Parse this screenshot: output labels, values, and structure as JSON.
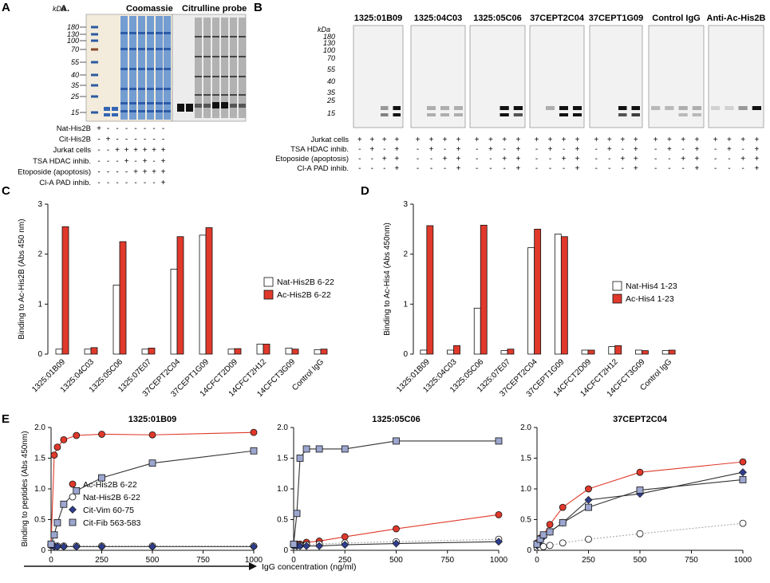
{
  "colors": {
    "red": "#e0392b",
    "lav": "#9ca6cf",
    "navy": "#2f3d8a",
    "blot_bg": "#f2f2f2"
  },
  "panelA": {
    "letter": "A",
    "sublabel": "A.",
    "kda": "kDa",
    "gel1_title": "Coomassie",
    "gel2_title": "Citrulline probe",
    "markers": [
      "180",
      "130",
      "100",
      "70",
      "55",
      "40",
      "35",
      "25",
      "15"
    ],
    "conditions": [
      {
        "label": "Nat-His2B",
        "signs": [
          "+",
          "-",
          "-",
          "-",
          "-",
          "-",
          "-",
          "-"
        ]
      },
      {
        "label": "Cit-His2B",
        "signs": [
          "-",
          "+",
          "-",
          "-",
          "-",
          "-",
          "-",
          "-"
        ]
      },
      {
        "label": "Jurkat cells",
        "signs": [
          "-",
          "-",
          "+",
          "+",
          "+",
          "+",
          "+",
          "+"
        ]
      },
      {
        "label": "TSA HDAC inhib.",
        "signs": [
          "-",
          "-",
          "-",
          "+",
          "-",
          "+",
          "-",
          "+"
        ]
      },
      {
        "label": "Etoposide (apoptosis)",
        "signs": [
          "-",
          "-",
          "-",
          "-",
          "+",
          "+",
          "+",
          "+"
        ]
      },
      {
        "label": "Cl-A PAD inhib.",
        "signs": [
          "-",
          "-",
          "-",
          "-",
          "-",
          "-",
          "-",
          "+"
        ]
      }
    ]
  },
  "panelB": {
    "letter": "B",
    "kda": "kDa",
    "markers": [
      "180",
      "130",
      "100",
      "70",
      "55",
      "40",
      "35",
      "25",
      "15"
    ],
    "blots": [
      "1325:01B09",
      "1325:04C03",
      "1325:05C06",
      "37CEPT2C04",
      "37CEPT1G09",
      "Control IgG",
      "Anti-Ac-His2B"
    ],
    "conditions": [
      {
        "label": "Jurkat cells",
        "signs": [
          "+",
          "+",
          "+",
          "+"
        ]
      },
      {
        "label": "TSA HDAC inhib.",
        "signs": [
          "-",
          "+",
          "-",
          "+"
        ]
      },
      {
        "label": "Etoposide (apoptosis)",
        "signs": [
          "-",
          "-",
          "+",
          "+"
        ]
      },
      {
        "label": "Cl-A PAD inhib.",
        "signs": [
          "-",
          "-",
          "-",
          "+"
        ]
      }
    ]
  },
  "chart_data": [
    {
      "id": "C",
      "type": "bar",
      "ylabel": "Binding to Ac-His2B (Abs 450 nm)",
      "ylim": [
        0,
        3
      ],
      "yticks": [
        "0",
        "1",
        "2",
        "3"
      ],
      "categories": [
        "1325:01B09",
        "1325:04C03",
        "1325:05C06",
        "1325:07E07",
        "37CEPT2C04",
        "37CEPT1G09",
        "14CFCT2D09",
        "14CFCT2H12",
        "14CFCT3G09",
        "Control IgG"
      ],
      "series": [
        {
          "name": "Nat-His2B 6-22",
          "color": "#ffffff",
          "values": [
            0.1,
            0.1,
            1.38,
            0.1,
            1.7,
            2.38,
            0.1,
            0.2,
            0.12,
            0.09
          ]
        },
        {
          "name": "Ac-His2B 6-22",
          "color": "#e0392b",
          "values": [
            2.55,
            0.13,
            2.25,
            0.12,
            2.35,
            2.53,
            0.11,
            0.2,
            0.1,
            0.1
          ]
        }
      ]
    },
    {
      "id": "D",
      "type": "bar",
      "ylabel": "Binding to Ac-His4 (Abs 450nm)",
      "ylim": [
        0,
        3
      ],
      "yticks": [
        "0",
        "1",
        "2",
        "3"
      ],
      "categories": [
        "1325:01B09",
        "1325:04C03",
        "1325:05C06",
        "1325:07E07",
        "37CEPT2C04",
        "37CEPT1G09",
        "14CFCT2D09",
        "14CFCT2H12",
        "14CFCT3G09",
        "Control IgG"
      ],
      "series": [
        {
          "name": "Nat-His4 1-23",
          "color": "#ffffff",
          "values": [
            0.08,
            0.08,
            0.92,
            0.07,
            2.13,
            2.4,
            0.08,
            0.15,
            0.08,
            0.07
          ]
        },
        {
          "name": "Ac-His4 1-23",
          "color": "#e0392b",
          "values": [
            2.57,
            0.17,
            2.58,
            0.1,
            2.5,
            2.35,
            0.08,
            0.17,
            0.07,
            0.08
          ]
        }
      ]
    },
    {
      "id": "E1",
      "type": "line",
      "title": "1325:01B09",
      "ylabel": "Binding to peptides (Abs 450nm)",
      "xlim": [
        0,
        1000
      ],
      "ylim": [
        0,
        2.0
      ],
      "xticks": [
        "0",
        "250",
        "500",
        "750",
        "1000"
      ],
      "yticks": [
        "0",
        "0.5",
        "1.0",
        "1.5",
        "2.0"
      ],
      "x": [
        0,
        15.6,
        31.25,
        62.5,
        125,
        250,
        500,
        1000
      ],
      "series": [
        {
          "name": "Ac-His2B 6-22",
          "marker": "circle",
          "color": "#e0392b",
          "line": "#e0392b",
          "values": [
            0.1,
            1.55,
            1.68,
            1.8,
            1.87,
            1.89,
            1.88,
            1.92
          ]
        },
        {
          "name": "Nat-His2B 6-22",
          "marker": "circle-open",
          "color": "#ffffff",
          "line": "#aaaaaa",
          "values": [
            0.08,
            0.07,
            0.07,
            0.07,
            0.07,
            0.07,
            0.07,
            0.07
          ]
        },
        {
          "name": "Cit-Vim 60-75",
          "marker": "diamond",
          "color": "#2f3d8a",
          "line": "#333333",
          "values": [
            0.09,
            0.06,
            0.06,
            0.06,
            0.06,
            0.06,
            0.06,
            0.06
          ]
        },
        {
          "name": "Cit-Fib 563-583",
          "marker": "square",
          "color": "#9ca6cf",
          "line": "#333333",
          "values": [
            0.1,
            0.25,
            0.45,
            0.75,
            0.97,
            1.18,
            1.42,
            1.62
          ]
        }
      ]
    },
    {
      "id": "E2",
      "type": "line",
      "title": "1325:05C06",
      "xlim": [
        0,
        1000
      ],
      "ylim": [
        0,
        2.0
      ],
      "xticks": [
        "0",
        "250",
        "500",
        "750",
        "1000"
      ],
      "yticks": [
        "0",
        "0.5",
        "1.0",
        "1.5",
        "2.0"
      ],
      "x": [
        0,
        15.6,
        31.25,
        62.5,
        125,
        250,
        500,
        1000
      ],
      "series": [
        {
          "name": "Ac-His2B 6-22",
          "marker": "circle",
          "color": "#e0392b",
          "line": "#e0392b",
          "values": [
            0.1,
            0.1,
            0.1,
            0.13,
            0.15,
            0.22,
            0.35,
            0.58
          ]
        },
        {
          "name": "Nat-His2B 6-22",
          "marker": "circle-open",
          "color": "#ffffff",
          "line": "#aaaaaa",
          "values": [
            0.08,
            0.08,
            0.08,
            0.09,
            0.1,
            0.12,
            0.14,
            0.18
          ]
        },
        {
          "name": "Cit-Vim 60-75",
          "marker": "diamond",
          "color": "#2f3d8a",
          "line": "#333333",
          "values": [
            0.08,
            0.07,
            0.07,
            0.07,
            0.07,
            0.09,
            0.11,
            0.14
          ]
        },
        {
          "name": "Cit-Fib 563-583",
          "marker": "square",
          "color": "#9ca6cf",
          "line": "#333333",
          "values": [
            0.1,
            0.6,
            1.5,
            1.65,
            1.65,
            1.65,
            1.78,
            1.78
          ]
        }
      ]
    },
    {
      "id": "E3",
      "type": "line",
      "title": "37CEPT2C04",
      "xlim": [
        0,
        1000
      ],
      "ylim": [
        0,
        2.0
      ],
      "xticks": [
        "0",
        "250",
        "500",
        "750",
        "1000"
      ],
      "yticks": [
        "0",
        "0.5",
        "1.0",
        "1.5",
        "2.0"
      ],
      "x": [
        0,
        15.6,
        31.25,
        62.5,
        125,
        250,
        500,
        1000
      ],
      "series": [
        {
          "name": "Ac-His2B 6-22",
          "marker": "circle",
          "color": "#e0392b",
          "line": "#e0392b",
          "values": [
            0.12,
            0.2,
            0.25,
            0.42,
            0.7,
            1.0,
            1.27,
            1.44
          ]
        },
        {
          "name": "Nat-His2B 6-22",
          "marker": "circle-open",
          "color": "#ffffff",
          "line": "#aaaaaa",
          "values": [
            0.05,
            0.05,
            0.06,
            0.08,
            0.12,
            0.18,
            0.27,
            0.44
          ]
        },
        {
          "name": "Cit-Vim 60-75",
          "marker": "diamond",
          "color": "#2f3d8a",
          "line": "#333333",
          "values": [
            0.08,
            0.15,
            0.22,
            0.3,
            0.45,
            0.82,
            0.92,
            1.27
          ]
        },
        {
          "name": "Cit-Fib 563-583",
          "marker": "square",
          "color": "#9ca6cf",
          "line": "#333333",
          "values": [
            0.1,
            0.18,
            0.25,
            0.3,
            0.45,
            0.7,
            0.98,
            1.15
          ]
        }
      ]
    }
  ],
  "panelC": {
    "letter": "C"
  },
  "panelD": {
    "letter": "D"
  },
  "panelE": {
    "letter": "E",
    "xlabel": "IgG concentration (ng/ml)"
  }
}
